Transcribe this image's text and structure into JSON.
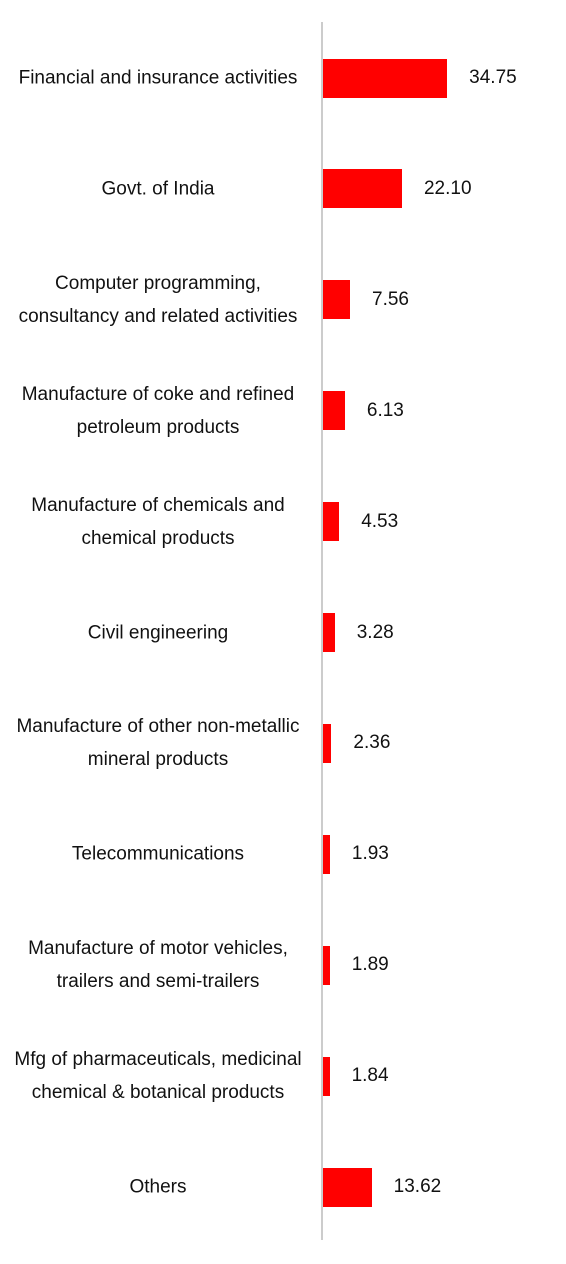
{
  "chart_data": {
    "type": "hbar",
    "categories": [
      "Financial and insurance activities",
      "Govt. of India",
      "Computer programming, consultancy and related activities",
      "Manufacture of coke and refined petroleum products",
      "Manufacture of chemicals and chemical products",
      "Civil engineering",
      "Manufacture of other non-metallic mineral products",
      "Telecommunications",
      "Manufacture of motor vehicles, trailers and semi-trailers",
      "Mfg of pharmaceuticals, medicinal chemical & botanical products",
      "Others"
    ],
    "values": [
      34.75,
      22.1,
      7.56,
      6.13,
      4.53,
      3.28,
      2.36,
      1.93,
      1.89,
      1.84,
      13.62
    ],
    "value_labels": [
      "34.75",
      "22.10",
      "7.56",
      "6.13",
      "4.53",
      "3.28",
      "2.36",
      "1.93",
      "1.89",
      "1.84",
      "13.62"
    ],
    "color": "#ff0000",
    "xlim": [
      0,
      68
    ]
  }
}
